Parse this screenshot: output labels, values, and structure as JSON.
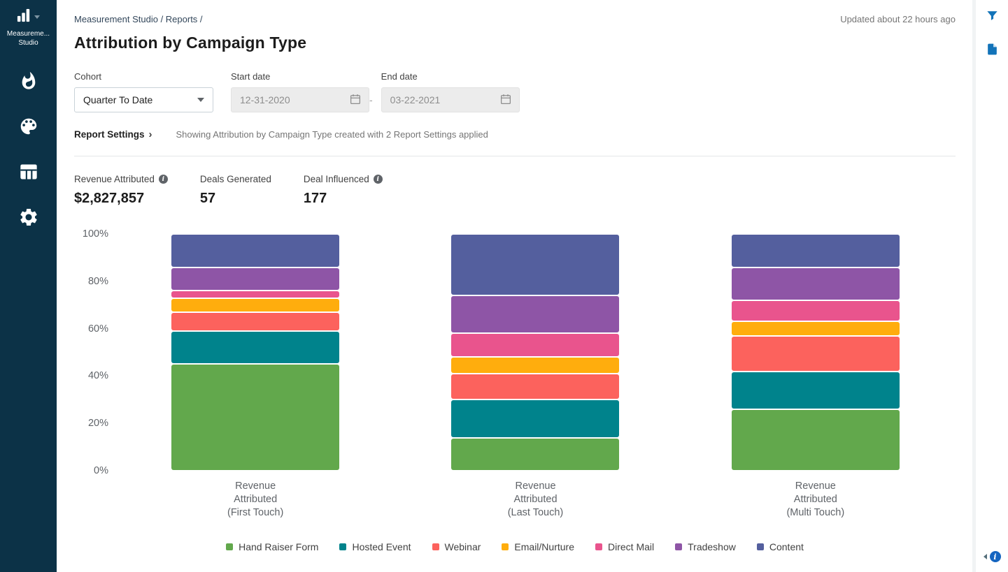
{
  "sidebar": {
    "logo_line1": "Measureme...",
    "logo_line2": "Studio",
    "nav_icons": [
      "flame-icon",
      "palette-icon",
      "table-icon",
      "gear-icon"
    ]
  },
  "header": {
    "breadcrumb": "Measurement Studio / Reports /",
    "updated": "Updated about 22 hours ago",
    "title": "Attribution by Campaign Type"
  },
  "filters": {
    "cohort_label": "Cohort",
    "cohort_value": "Quarter To Date",
    "start_label": "Start date",
    "start_value": "12-31-2020",
    "separator": "-",
    "end_label": "End date",
    "end_value": "03-22-2021"
  },
  "report_settings": {
    "link": "Report Settings",
    "chevron": "›",
    "description": "Showing Attribution by Campaign Type created with 2 Report Settings applied"
  },
  "glyphs": {
    "info": "i"
  },
  "kpis": [
    {
      "label": "Revenue Attributed",
      "has_info": true,
      "value": "$2,827,857"
    },
    {
      "label": "Deals Generated",
      "has_info": false,
      "value": "57"
    },
    {
      "label": "Deal Influenced",
      "has_info": true,
      "value": "177"
    }
  ],
  "chart_data": {
    "type": "bar",
    "stacked": true,
    "percent": true,
    "title": "Attribution by Campaign Type",
    "xlabel": "",
    "ylabel": "",
    "ylim": [
      0,
      100
    ],
    "grid": false,
    "legend_position": "bottom",
    "y_ticks": [
      "100%",
      "80%",
      "60%",
      "40%",
      "20%",
      "0%"
    ],
    "categories": [
      [
        "Revenue",
        "Attributed",
        "(First Touch)"
      ],
      [
        "Revenue",
        "Attributed",
        "(Last Touch)"
      ],
      [
        "Revenue",
        "Attributed",
        "(Multi Touch)"
      ]
    ],
    "series": [
      {
        "name": "Hand Raiser Form",
        "color": "#62a84c",
        "values": [
          45,
          14,
          26
        ]
      },
      {
        "name": "Hosted Event",
        "color": "#00838c",
        "values": [
          14,
          16,
          16
        ]
      },
      {
        "name": "Webinar",
        "color": "#fc625d",
        "values": [
          8,
          11,
          15
        ]
      },
      {
        "name": "Email/Nurture",
        "color": "#ffad0d",
        "values": [
          6,
          7,
          6
        ]
      },
      {
        "name": "Direct Mail",
        "color": "#e9548d",
        "values": [
          3,
          10,
          9
        ]
      },
      {
        "name": "Tradeshow",
        "color": "#8e55a6",
        "values": [
          10,
          16,
          14
        ]
      },
      {
        "name": "Content",
        "color": "#545f9e",
        "values": [
          14,
          26,
          14
        ]
      }
    ]
  },
  "colors": {
    "sidebar_bg": "#0c3247",
    "rail_icon_blue": "#1273b9",
    "info_blue": "#1565c0"
  },
  "right_rail": {
    "icons": [
      "filter-icon",
      "document-icon",
      "collapse-left-icon",
      "info-icon"
    ]
  }
}
